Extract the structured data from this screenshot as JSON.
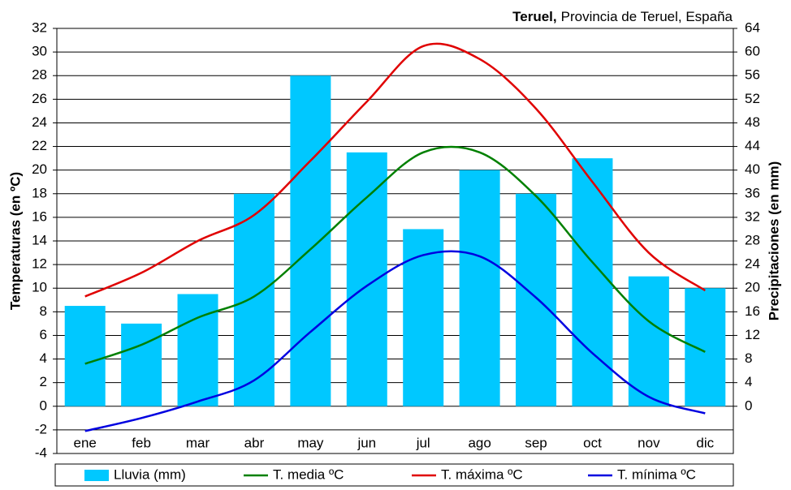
{
  "chart_data": {
    "type": "bar",
    "title": {
      "place": "Teruel,",
      "region": "Provincia de Teruel, España"
    },
    "ylabel": "Temperaturas (en ºC)",
    "y2label": "Precipitaciones (en mm)",
    "categories": [
      "ene",
      "feb",
      "mar",
      "abr",
      "may",
      "jun",
      "jul",
      "ago",
      "sep",
      "oct",
      "nov",
      "dic"
    ],
    "ylim": [
      -4,
      32
    ],
    "yticks": [
      -4,
      -2,
      0,
      2,
      4,
      6,
      8,
      10,
      12,
      14,
      16,
      18,
      20,
      22,
      24,
      26,
      28,
      30,
      32
    ],
    "y2lim": [
      -8,
      64
    ],
    "y2ticks": [
      0,
      4,
      8,
      12,
      16,
      20,
      24,
      28,
      32,
      36,
      40,
      44,
      48,
      52,
      56,
      60,
      64
    ],
    "grid": true,
    "legend": "bottom",
    "series": [
      {
        "name": "Lluvia (mm)",
        "type": "bar",
        "axis": "y2",
        "color": "#00c8ff",
        "values": [
          17,
          14,
          19,
          36,
          56,
          43,
          30,
          40,
          36,
          42,
          22,
          20
        ]
      },
      {
        "name": "T. media ºC",
        "type": "line",
        "color": "#008000",
        "values": [
          3.6,
          5.2,
          7.5,
          9.3,
          13.3,
          17.7,
          21.5,
          21.5,
          17.8,
          12.2,
          7.2,
          4.6
        ]
      },
      {
        "name": "T. máxima ºC",
        "type": "line",
        "color": "#e00000",
        "values": [
          9.3,
          11.3,
          14.0,
          16.2,
          20.8,
          25.8,
          30.5,
          29.4,
          25.2,
          19.0,
          13.0,
          9.8
        ]
      },
      {
        "name": "T. mínima ºC",
        "type": "line",
        "color": "#0000e0",
        "values": [
          -2.1,
          -1.0,
          0.4,
          2.2,
          6.3,
          10.2,
          12.8,
          12.7,
          9.2,
          4.5,
          0.8,
          -0.6
        ]
      }
    ]
  }
}
